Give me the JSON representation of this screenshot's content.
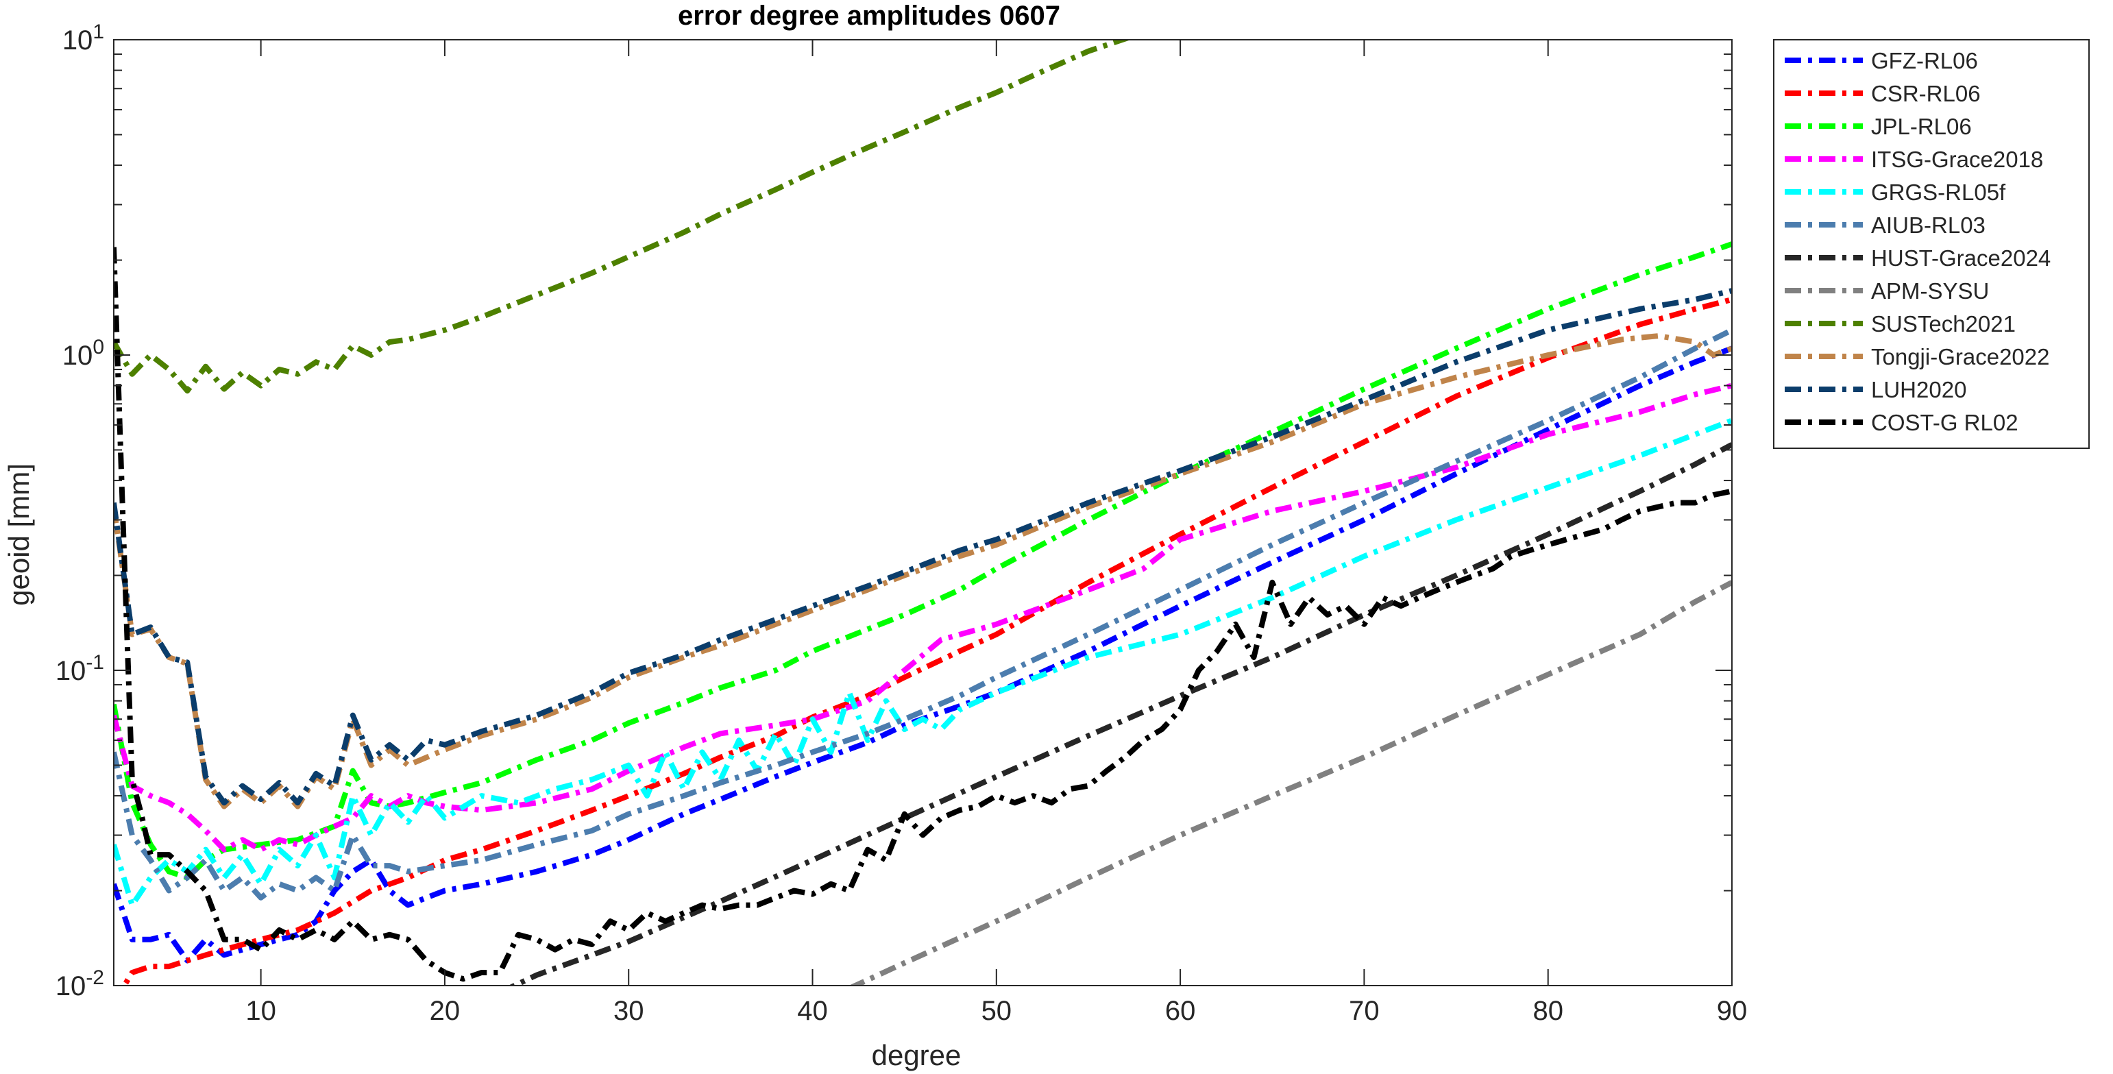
{
  "chart_data": {
    "type": "line",
    "title": "error degree amplitudes 0607",
    "xlabel": "degree",
    "ylabel": "geoid [mm]",
    "xlim": [
      2,
      90
    ],
    "ylim": [
      0.01,
      10
    ],
    "yscale": "log",
    "grid": false,
    "legend_position": "outside-right",
    "x_ticks": [
      10,
      20,
      30,
      40,
      50,
      60,
      70,
      80,
      90
    ],
    "x_tick_labels": [
      "10",
      "20",
      "30",
      "40",
      "50",
      "60",
      "70",
      "80",
      "90"
    ],
    "y_ticks": [
      0.01,
      0.1,
      1,
      10
    ],
    "y_tick_bases": [
      "10",
      "10",
      "10",
      "10"
    ],
    "y_tick_exponents": [
      "-2",
      "-1",
      "0",
      "1"
    ],
    "series": [
      {
        "name": "GFZ-RL06",
        "color": "#0000ff",
        "style": "dashdot",
        "x": [
          2,
          3,
          4,
          5,
          6,
          7,
          8,
          9,
          10,
          11,
          12,
          13,
          14,
          15,
          16,
          17,
          18,
          19,
          20,
          22,
          25,
          28,
          30,
          33,
          35,
          38,
          40,
          43,
          45,
          48,
          50,
          55,
          60,
          65,
          70,
          75,
          80,
          85,
          88,
          90
        ],
        "y": [
          0.021,
          0.014,
          0.014,
          0.0145,
          0.012,
          0.014,
          0.0125,
          0.013,
          0.0135,
          0.014,
          0.0145,
          0.016,
          0.02,
          0.023,
          0.025,
          0.02,
          0.018,
          0.019,
          0.02,
          0.021,
          0.023,
          0.026,
          0.029,
          0.035,
          0.039,
          0.046,
          0.051,
          0.059,
          0.067,
          0.077,
          0.085,
          0.115,
          0.16,
          0.22,
          0.3,
          0.42,
          0.58,
          0.8,
          0.95,
          1.05
        ]
      },
      {
        "name": "CSR-RL06",
        "color": "#ff0000",
        "style": "dashdot",
        "x": [
          2,
          3,
          4,
          5,
          6,
          7,
          8,
          10,
          12,
          14,
          16,
          18,
          20,
          22,
          25,
          28,
          30,
          33,
          35,
          38,
          40,
          43,
          45,
          48,
          50,
          55,
          60,
          65,
          70,
          75,
          80,
          85,
          88,
          90
        ],
        "y": [
          0.0088,
          0.011,
          0.0115,
          0.0115,
          0.012,
          0.0125,
          0.013,
          0.014,
          0.015,
          0.017,
          0.02,
          0.022,
          0.025,
          0.027,
          0.031,
          0.036,
          0.04,
          0.047,
          0.053,
          0.062,
          0.071,
          0.083,
          0.095,
          0.115,
          0.13,
          0.19,
          0.27,
          0.38,
          0.53,
          0.74,
          0.98,
          1.25,
          1.4,
          1.5
        ]
      },
      {
        "name": "JPL-RL06",
        "color": "#00ff00",
        "style": "dashdot",
        "x": [
          2,
          3,
          4,
          5,
          6,
          7,
          8,
          10,
          12,
          14,
          15,
          16,
          17,
          18,
          20,
          22,
          25,
          28,
          30,
          33,
          35,
          38,
          40,
          43,
          45,
          48,
          50,
          55,
          60,
          65,
          70,
          75,
          80,
          85,
          88,
          90
        ],
        "y": [
          0.078,
          0.038,
          0.028,
          0.023,
          0.022,
          0.025,
          0.027,
          0.028,
          0.029,
          0.032,
          0.048,
          0.038,
          0.037,
          0.038,
          0.041,
          0.044,
          0.052,
          0.06,
          0.068,
          0.079,
          0.088,
          0.1,
          0.115,
          0.135,
          0.15,
          0.18,
          0.21,
          0.3,
          0.42,
          0.57,
          0.78,
          1.05,
          1.4,
          1.8,
          2.05,
          2.25
        ]
      },
      {
        "name": "ITSG-Grace2018",
        "color": "#ff00ff",
        "style": "dashdot",
        "x": [
          2,
          3,
          4,
          5,
          6,
          7,
          8,
          9,
          10,
          11,
          12,
          13,
          14,
          15,
          16,
          17,
          18,
          19,
          20,
          22,
          25,
          28,
          30,
          33,
          35,
          38,
          40,
          43,
          45,
          47,
          50,
          55,
          58,
          60,
          65,
          70,
          75,
          80,
          85,
          88,
          90
        ],
        "y": [
          0.072,
          0.043,
          0.04,
          0.038,
          0.035,
          0.031,
          0.027,
          0.029,
          0.027,
          0.029,
          0.028,
          0.03,
          0.032,
          0.034,
          0.04,
          0.037,
          0.04,
          0.038,
          0.037,
          0.036,
          0.038,
          0.042,
          0.048,
          0.057,
          0.063,
          0.067,
          0.07,
          0.08,
          0.1,
          0.125,
          0.14,
          0.18,
          0.21,
          0.26,
          0.32,
          0.37,
          0.44,
          0.56,
          0.66,
          0.75,
          0.8
        ]
      },
      {
        "name": "GRGS-RL05f",
        "color": "#00ffff",
        "style": "dashdot",
        "x": [
          2,
          3,
          4,
          5,
          6,
          7,
          8,
          9,
          10,
          11,
          12,
          13,
          14,
          15,
          16,
          17,
          18,
          19,
          20,
          22,
          24,
          26,
          28,
          30,
          31,
          32,
          33,
          34,
          35,
          36,
          37,
          38,
          39,
          40,
          41,
          42,
          43,
          44,
          45,
          46,
          47,
          48,
          50,
          55,
          60,
          65,
          70,
          75,
          80,
          85,
          88,
          90
        ],
        "y": [
          0.028,
          0.018,
          0.022,
          0.025,
          0.023,
          0.027,
          0.022,
          0.026,
          0.021,
          0.027,
          0.024,
          0.03,
          0.022,
          0.04,
          0.03,
          0.038,
          0.033,
          0.04,
          0.034,
          0.04,
          0.038,
          0.042,
          0.045,
          0.05,
          0.04,
          0.055,
          0.042,
          0.055,
          0.045,
          0.06,
          0.048,
          0.063,
          0.05,
          0.07,
          0.055,
          0.085,
          0.06,
          0.08,
          0.065,
          0.07,
          0.065,
          0.075,
          0.085,
          0.11,
          0.13,
          0.17,
          0.23,
          0.3,
          0.38,
          0.48,
          0.56,
          0.62
        ]
      },
      {
        "name": "AIUB-RL03",
        "color": "#4c7dae",
        "style": "dashdot",
        "x": [
          2,
          3,
          4,
          5,
          6,
          7,
          8,
          9,
          10,
          11,
          12,
          13,
          14,
          15,
          16,
          17,
          18,
          20,
          22,
          25,
          28,
          30,
          33,
          35,
          38,
          40,
          43,
          45,
          48,
          50,
          55,
          60,
          65,
          70,
          75,
          80,
          85,
          88,
          90
        ],
        "y": [
          0.055,
          0.03,
          0.025,
          0.02,
          0.022,
          0.025,
          0.02,
          0.022,
          0.019,
          0.021,
          0.02,
          0.022,
          0.02,
          0.03,
          0.024,
          0.024,
          0.023,
          0.024,
          0.025,
          0.028,
          0.031,
          0.035,
          0.04,
          0.044,
          0.05,
          0.055,
          0.063,
          0.07,
          0.083,
          0.095,
          0.13,
          0.18,
          0.25,
          0.34,
          0.46,
          0.62,
          0.85,
          1.05,
          1.2
        ]
      },
      {
        "name": "HUST-Grace2024",
        "color": "#262626",
        "style": "dashdot",
        "x": [
          23,
          25,
          28,
          30,
          35,
          40,
          45,
          50,
          55,
          60,
          65,
          70,
          75,
          80,
          85,
          88,
          90
        ],
        "y": [
          0.0095,
          0.0108,
          0.0125,
          0.0138,
          0.0185,
          0.025,
          0.034,
          0.046,
          0.062,
          0.083,
          0.11,
          0.15,
          0.2,
          0.27,
          0.37,
          0.45,
          0.52
        ]
      },
      {
        "name": "APM-SYSU",
        "color": "#808080",
        "style": "dashdot",
        "x": [
          42,
          45,
          50,
          55,
          60,
          65,
          70,
          75,
          80,
          85,
          88,
          90
        ],
        "y": [
          0.0098,
          0.0118,
          0.016,
          0.022,
          0.03,
          0.04,
          0.053,
          0.072,
          0.097,
          0.13,
          0.165,
          0.19
        ]
      },
      {
        "name": "SUSTech2021",
        "color": "#4d8000",
        "style": "dashdot",
        "x": [
          2,
          3,
          4,
          5,
          6,
          7,
          8,
          9,
          10,
          11,
          12,
          13,
          14,
          15,
          16,
          17,
          18,
          20,
          22,
          25,
          28,
          30,
          33,
          35,
          38,
          40,
          43,
          45,
          48,
          50,
          52,
          55,
          57.5
        ],
        "y": [
          1.1,
          0.87,
          1.0,
          0.9,
          0.77,
          0.92,
          0.78,
          0.88,
          0.8,
          0.9,
          0.87,
          0.95,
          0.9,
          1.07,
          1.0,
          1.1,
          1.12,
          1.2,
          1.32,
          1.55,
          1.82,
          2.05,
          2.45,
          2.8,
          3.35,
          3.8,
          4.55,
          5.1,
          6.1,
          6.8,
          7.7,
          9.2,
          10.3
        ]
      },
      {
        "name": "Tongji-Grace2022",
        "color": "#c0844a",
        "style": "dashdot",
        "x": [
          2,
          3,
          4,
          5,
          6,
          7,
          8,
          9,
          10,
          11,
          12,
          13,
          14,
          15,
          16,
          17,
          18,
          20,
          22,
          25,
          28,
          30,
          33,
          35,
          38,
          40,
          43,
          45,
          48,
          50,
          55,
          60,
          65,
          70,
          75,
          80,
          84,
          86,
          88,
          89,
          90
        ],
        "y": [
          0.33,
          0.13,
          0.135,
          0.11,
          0.105,
          0.045,
          0.037,
          0.042,
          0.038,
          0.043,
          0.037,
          0.046,
          0.042,
          0.07,
          0.05,
          0.056,
          0.05,
          0.056,
          0.062,
          0.07,
          0.082,
          0.095,
          0.11,
          0.12,
          0.14,
          0.155,
          0.18,
          0.2,
          0.23,
          0.25,
          0.33,
          0.42,
          0.53,
          0.7,
          0.85,
          1.0,
          1.12,
          1.15,
          1.1,
          1.0,
          1.05
        ]
      },
      {
        "name": "LUH2020",
        "color": "#0b3d6b",
        "style": "dashdot",
        "x": [
          2,
          3,
          4,
          5,
          6,
          7,
          8,
          9,
          10,
          11,
          12,
          13,
          14,
          15,
          16,
          17,
          18,
          19,
          20,
          22,
          25,
          28,
          30,
          33,
          35,
          38,
          40,
          43,
          45,
          48,
          50,
          55,
          60,
          65,
          70,
          75,
          80,
          85,
          88,
          90
        ],
        "y": [
          0.34,
          0.13,
          0.137,
          0.11,
          0.106,
          0.046,
          0.038,
          0.043,
          0.039,
          0.044,
          0.038,
          0.047,
          0.043,
          0.072,
          0.052,
          0.058,
          0.052,
          0.06,
          0.058,
          0.064,
          0.072,
          0.085,
          0.098,
          0.112,
          0.125,
          0.145,
          0.16,
          0.185,
          0.205,
          0.24,
          0.26,
          0.34,
          0.43,
          0.55,
          0.72,
          0.95,
          1.2,
          1.4,
          1.5,
          1.6
        ]
      },
      {
        "name": "COST-G RL02",
        "color": "#000000",
        "style": "dashdot",
        "x": [
          2,
          2.5,
          3,
          3.5,
          4,
          5,
          6,
          7,
          8,
          9,
          10,
          11,
          12,
          13,
          14,
          15,
          16,
          17,
          18,
          19,
          20,
          21,
          22,
          23,
          24,
          25,
          26,
          27,
          28,
          29,
          30,
          31,
          32,
          33,
          34,
          35,
          36,
          37,
          38,
          39,
          40,
          41,
          42,
          43,
          44,
          45,
          46,
          47,
          48,
          49,
          50,
          51,
          52,
          53,
          54,
          55,
          56,
          57,
          58,
          59,
          60,
          61,
          62,
          63,
          64,
          65,
          66,
          67,
          68,
          69,
          70,
          71,
          72,
          73,
          74,
          75,
          76,
          77,
          78,
          79,
          80,
          81,
          82,
          83,
          84,
          85,
          86,
          87,
          88,
          89,
          90
        ],
        "y": [
          2.2,
          0.3,
          0.045,
          0.035,
          0.026,
          0.026,
          0.023,
          0.02,
          0.014,
          0.014,
          0.013,
          0.015,
          0.014,
          0.015,
          0.014,
          0.016,
          0.014,
          0.0145,
          0.014,
          0.012,
          0.011,
          0.0105,
          0.011,
          0.011,
          0.0145,
          0.014,
          0.013,
          0.014,
          0.0135,
          0.016,
          0.015,
          0.017,
          0.016,
          0.017,
          0.018,
          0.0175,
          0.018,
          0.018,
          0.019,
          0.02,
          0.0195,
          0.021,
          0.02,
          0.027,
          0.025,
          0.035,
          0.03,
          0.034,
          0.036,
          0.037,
          0.04,
          0.038,
          0.04,
          0.038,
          0.042,
          0.043,
          0.048,
          0.053,
          0.06,
          0.065,
          0.075,
          0.1,
          0.115,
          0.14,
          0.11,
          0.19,
          0.14,
          0.17,
          0.15,
          0.16,
          0.14,
          0.17,
          0.16,
          0.17,
          0.18,
          0.19,
          0.2,
          0.21,
          0.23,
          0.24,
          0.25,
          0.26,
          0.27,
          0.28,
          0.3,
          0.32,
          0.33,
          0.34,
          0.34,
          0.36,
          0.37
        ]
      }
    ]
  }
}
